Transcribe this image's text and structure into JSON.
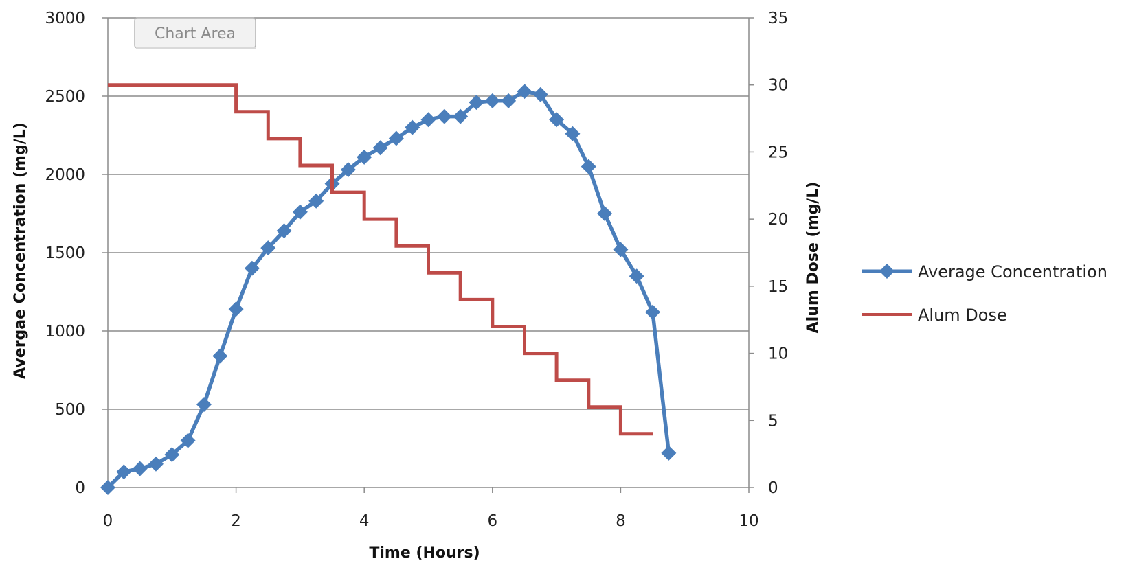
{
  "chart_area_label": "Chart Area",
  "chart_data": {
    "type": "line",
    "title": "",
    "xlabel": "Time (Hours)",
    "ylabel": "Avergae Concentration  (mg/L)",
    "y2label": "Alum Dose  (mg/L)",
    "xlim": [
      0,
      10
    ],
    "ylim": [
      0,
      3000
    ],
    "y2lim": [
      0,
      35
    ],
    "xticks": [
      "0",
      "2",
      "4",
      "6",
      "8",
      "10"
    ],
    "yticks": [
      "0",
      "500",
      "1000",
      "1500",
      "2000",
      "2500",
      "3000"
    ],
    "y2ticks": [
      "0",
      "5",
      "10",
      "15",
      "20",
      "25",
      "30",
      "35"
    ],
    "grid": "horizontal",
    "legend_position": "right",
    "series": [
      {
        "name": "Average Concentration",
        "axis": "left",
        "color": "#4a7ebb",
        "marker": "diamond",
        "x": [
          0,
          0.25,
          0.5,
          0.75,
          1,
          1.25,
          1.5,
          1.75,
          2,
          2.25,
          2.5,
          2.75,
          3,
          3.25,
          3.5,
          3.75,
          4,
          4.25,
          4.5,
          4.75,
          5,
          5.25,
          5.5,
          5.75,
          6,
          6.25,
          6.5,
          6.75,
          7,
          7.25,
          7.5,
          7.75,
          8,
          8.25,
          8.5,
          8.75
        ],
        "y": [
          0,
          100,
          120,
          150,
          210,
          300,
          530,
          840,
          1140,
          1400,
          1530,
          1640,
          1760,
          1830,
          1940,
          2030,
          2110,
          2170,
          2230,
          2300,
          2350,
          2370,
          2370,
          2460,
          2470,
          2470,
          2530,
          2510,
          2350,
          2260,
          2050,
          1750,
          1520,
          1350,
          1120,
          220
        ]
      },
      {
        "name": "Alum Dose",
        "axis": "right",
        "color": "#be4b48",
        "step": true,
        "x": [
          0,
          2,
          2,
          2.5,
          2.5,
          3,
          3,
          3.5,
          3.5,
          4,
          4,
          4.5,
          4.5,
          5,
          5,
          5.5,
          5.5,
          6,
          6,
          6.5,
          6.5,
          7,
          7,
          7.5,
          7.5,
          8,
          8,
          8.5
        ],
        "y": [
          30,
          30,
          28,
          28,
          26,
          26,
          24,
          24,
          22,
          22,
          20,
          20,
          18,
          18,
          16,
          16,
          14,
          14,
          12,
          12,
          10,
          10,
          8,
          8,
          6,
          6,
          4,
          4
        ]
      }
    ]
  }
}
